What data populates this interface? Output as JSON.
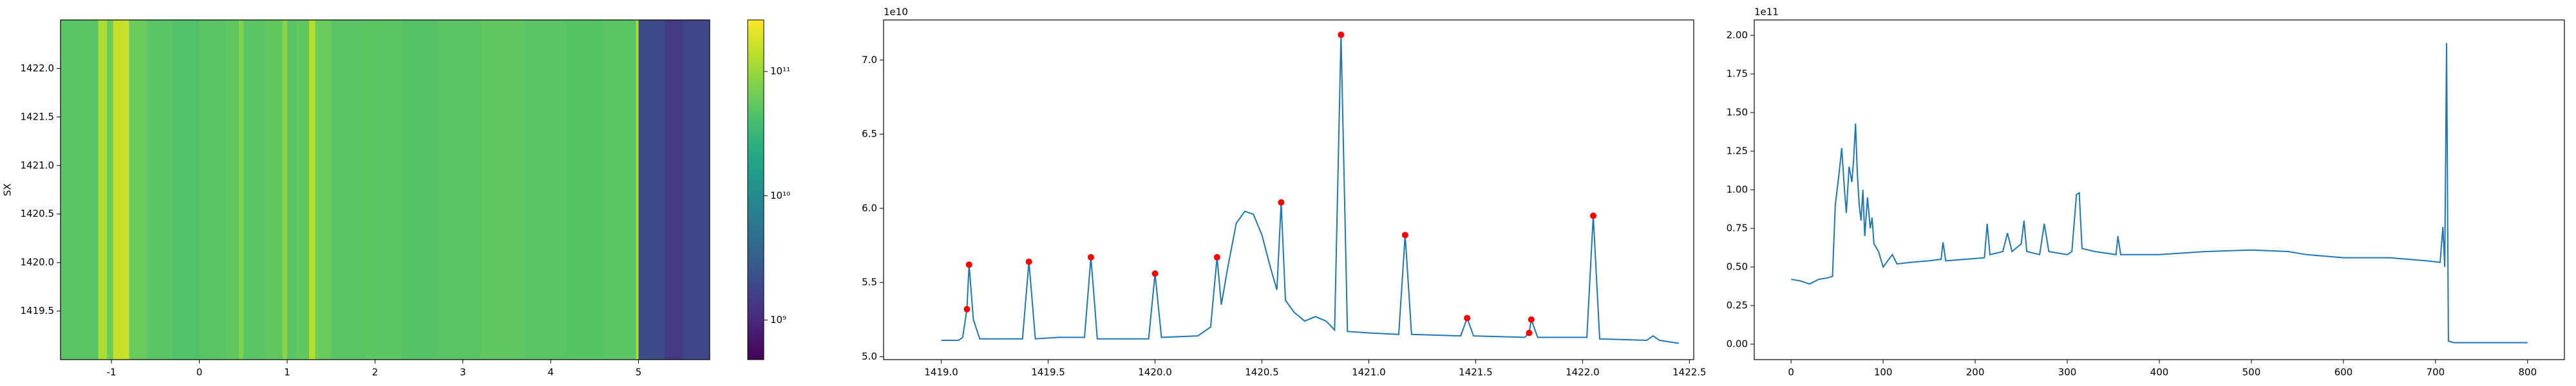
{
  "chart_data": [
    {
      "type": "heatmap",
      "ylabel": "SX",
      "xlim": [
        -1.58,
        5.81
      ],
      "ylim": [
        1419.0,
        1422.5
      ],
      "xticks": [
        -1,
        0,
        1,
        2,
        3,
        4,
        5
      ],
      "yticks": [
        1419.5,
        {
          "value": 1420,
          "label": "1420.0"
        },
        1420.5,
        {
          "value": 1421,
          "label": "1421.0"
        },
        1421.5,
        {
          "value": 1422,
          "label": "1422.0"
        }
      ],
      "x_edges": [
        -1.58,
        -1.15,
        -1.05,
        -0.98,
        -0.9,
        -0.8,
        -0.6,
        -0.3,
        0.0,
        0.3,
        0.45,
        0.5,
        0.75,
        0.95,
        1.0,
        1.1,
        1.25,
        1.32,
        1.5,
        1.9,
        2.3,
        2.7,
        3.2,
        3.7,
        4.2,
        4.6,
        4.97,
        5.0,
        5.3,
        5.5,
        5.81
      ],
      "values": [
        50000000000.0,
        120000000000.0,
        60000000000.0,
        150000000000.0,
        160000000000.0,
        60000000000.0,
        50000000000.0,
        45000000000.0,
        50000000000.0,
        55000000000.0,
        80000000000.0,
        50000000000.0,
        55000000000.0,
        90000000000.0,
        50000000000.0,
        55000000000.0,
        130000000000.0,
        60000000000.0,
        50000000000.0,
        52000000000.0,
        48000000000.0,
        50000000000.0,
        53000000000.0,
        50000000000.0,
        49000000000.0,
        51000000000.0,
        120000000000.0,
        2000000000.0,
        1400000000.0,
        1800000000.0
      ],
      "colorbar": {
        "colormap": "viridis",
        "log": true,
        "lim": [
          480000000.0,
          260000000000.0
        ],
        "ticks": [
          {
            "value": 1000000000.0,
            "label": "10⁹"
          },
          {
            "value": 10000000000.0,
            "label": "10¹⁰"
          },
          {
            "value": 100000000000.0,
            "label": "10¹¹"
          }
        ]
      }
    },
    {
      "type": "line",
      "offset_label": "1e10",
      "xlim": [
        1418.73,
        1422.52
      ],
      "ylim": [
        4.98,
        7.27
      ],
      "xticks": [
        {
          "value": 1419,
          "label": "1419.0"
        },
        1419.5,
        {
          "value": 1420,
          "label": "1420.0"
        },
        1420.5,
        {
          "value": 1421,
          "label": "1421.0"
        },
        1421.5,
        {
          "value": 1422,
          "label": "1422.0"
        },
        1422.5
      ],
      "yticks": [
        {
          "value": 5,
          "label": "5.0"
        },
        5.5,
        {
          "value": 6,
          "label": "6.0"
        },
        6.5,
        {
          "value": 7,
          "label": "7.0"
        }
      ],
      "x": [
        1419.0,
        1419.08,
        1419.1,
        1419.12,
        1419.13,
        1419.15,
        1419.18,
        1419.38,
        1419.41,
        1419.44,
        1419.55,
        1419.67,
        1419.7,
        1419.73,
        1419.97,
        1420.0,
        1420.03,
        1420.2,
        1420.26,
        1420.29,
        1420.31,
        1420.34,
        1420.38,
        1420.42,
        1420.46,
        1420.5,
        1420.54,
        1420.57,
        1420.59,
        1420.61,
        1420.65,
        1420.7,
        1420.75,
        1420.8,
        1420.84,
        1420.87,
        1420.9,
        1421.0,
        1421.14,
        1421.17,
        1421.2,
        1421.43,
        1421.46,
        1421.49,
        1421.73,
        1421.75,
        1421.76,
        1421.79,
        1422.02,
        1422.05,
        1422.08,
        1422.3,
        1422.33,
        1422.36,
        1422.45
      ],
      "series": [
        {
          "color": "#1f77b4",
          "values": [
            5.11,
            5.11,
            5.13,
            5.32,
            5.62,
            5.25,
            5.12,
            5.12,
            5.64,
            5.12,
            5.13,
            5.13,
            5.67,
            5.12,
            5.12,
            5.56,
            5.13,
            5.14,
            5.2,
            5.67,
            5.35,
            5.6,
            5.9,
            5.98,
            5.96,
            5.82,
            5.6,
            5.45,
            6.04,
            5.38,
            5.3,
            5.24,
            5.27,
            5.24,
            5.18,
            7.17,
            5.17,
            5.16,
            5.15,
            5.82,
            5.15,
            5.14,
            5.26,
            5.14,
            5.13,
            5.16,
            5.25,
            5.13,
            5.13,
            5.95,
            5.12,
            5.11,
            5.14,
            5.11,
            5.09
          ]
        }
      ],
      "peaks": {
        "color": "red",
        "x": [
          1419.12,
          1419.13,
          1419.41,
          1419.7,
          1420.0,
          1420.29,
          1420.59,
          1420.87,
          1421.17,
          1421.46,
          1421.75,
          1421.76,
          1422.05
        ],
        "values": [
          5.32,
          5.62,
          5.64,
          5.67,
          5.56,
          5.67,
          6.04,
          7.17,
          5.82,
          5.26,
          5.16,
          5.25,
          5.95
        ]
      }
    },
    {
      "type": "line",
      "offset_label": "1e11",
      "xlim": [
        -40,
        840
      ],
      "ylim": [
        -0.1,
        2.1
      ],
      "xticks": [
        0,
        100,
        200,
        300,
        400,
        500,
        600,
        700,
        800
      ],
      "yticks": [
        {
          "value": 0,
          "label": "0.00"
        },
        0.25,
        {
          "value": 0.5,
          "label": "0.50"
        },
        0.75,
        {
          "value": 1,
          "label": "1.00"
        },
        1.25,
        {
          "value": 1.5,
          "label": "1.50"
        },
        1.75,
        {
          "value": 2,
          "label": "2.00"
        }
      ],
      "x": [
        0,
        10,
        20,
        30,
        40,
        45,
        48,
        52,
        55,
        58,
        60,
        63,
        66,
        68,
        70,
        72,
        74,
        76,
        78,
        80,
        83,
        86,
        88,
        90,
        95,
        100,
        110,
        115,
        130,
        150,
        163,
        165,
        168,
        190,
        210,
        213,
        216,
        230,
        235,
        240,
        250,
        253,
        256,
        270,
        275,
        280,
        300,
        305,
        310,
        313,
        316,
        330,
        353,
        355,
        358,
        400,
        450,
        500,
        540,
        560,
        600,
        650,
        690,
        705,
        708,
        710,
        712,
        714,
        720,
        800
      ],
      "series": [
        {
          "color": "#1f77b4",
          "values": [
            0.42,
            0.41,
            0.39,
            0.42,
            0.43,
            0.44,
            0.9,
            1.1,
            1.27,
            1.0,
            0.85,
            1.15,
            1.05,
            1.2,
            1.43,
            1.1,
            0.9,
            0.8,
            1.0,
            0.7,
            0.95,
            0.75,
            0.82,
            0.65,
            0.6,
            0.5,
            0.58,
            0.52,
            0.53,
            0.54,
            0.55,
            0.66,
            0.54,
            0.55,
            0.56,
            0.78,
            0.58,
            0.6,
            0.72,
            0.6,
            0.65,
            0.8,
            0.6,
            0.58,
            0.78,
            0.6,
            0.58,
            0.6,
            0.97,
            0.98,
            0.62,
            0.6,
            0.58,
            0.7,
            0.58,
            0.58,
            0.6,
            0.61,
            0.6,
            0.58,
            0.56,
            0.56,
            0.54,
            0.53,
            0.76,
            0.5,
            1.95,
            0.02,
            0.01,
            0.01
          ]
        }
      ]
    }
  ]
}
